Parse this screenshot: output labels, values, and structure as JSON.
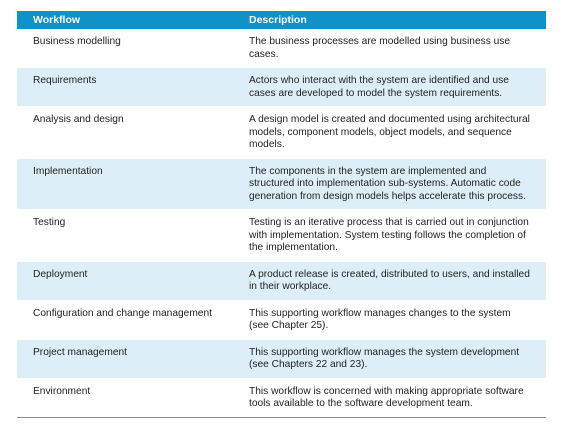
{
  "header": {
    "col1": "Workflow",
    "col2": "Description"
  },
  "rows": [
    {
      "workflow": "Business modelling",
      "description": "The business processes are modelled using business use cases."
    },
    {
      "workflow": "Requirements",
      "description": "Actors who interact with the system are identified and use cases are developed to model the system requirements."
    },
    {
      "workflow": "Analysis and design",
      "description": "A design model is created and documented using architectural models, component models, object models, and sequence models."
    },
    {
      "workflow": "Implementation",
      "description": "The components in the system are implemented and structured into implementation sub-systems. Automatic code generation from design models helps accelerate this process."
    },
    {
      "workflow": "Testing",
      "description": "Testing is an iterative process that is carried out in conjunction with implementation. System testing follows the completion of the implementation."
    },
    {
      "workflow": "Deployment",
      "description": "A product release is created, distributed to users, and installed in their workplace."
    },
    {
      "workflow": "Configuration and change management",
      "description": "This supporting workflow manages changes to the system (see Chapter 25)."
    },
    {
      "workflow": "Project management",
      "description": "This supporting workflow manages the system development (see Chapters 22 and 23)."
    },
    {
      "workflow": "Environment",
      "description": "This workflow is concerned with making appropriate software tools available to the software development team."
    }
  ],
  "colors": {
    "header_bg": "#0e92c8",
    "stripe_bg": "#ddeef8"
  }
}
